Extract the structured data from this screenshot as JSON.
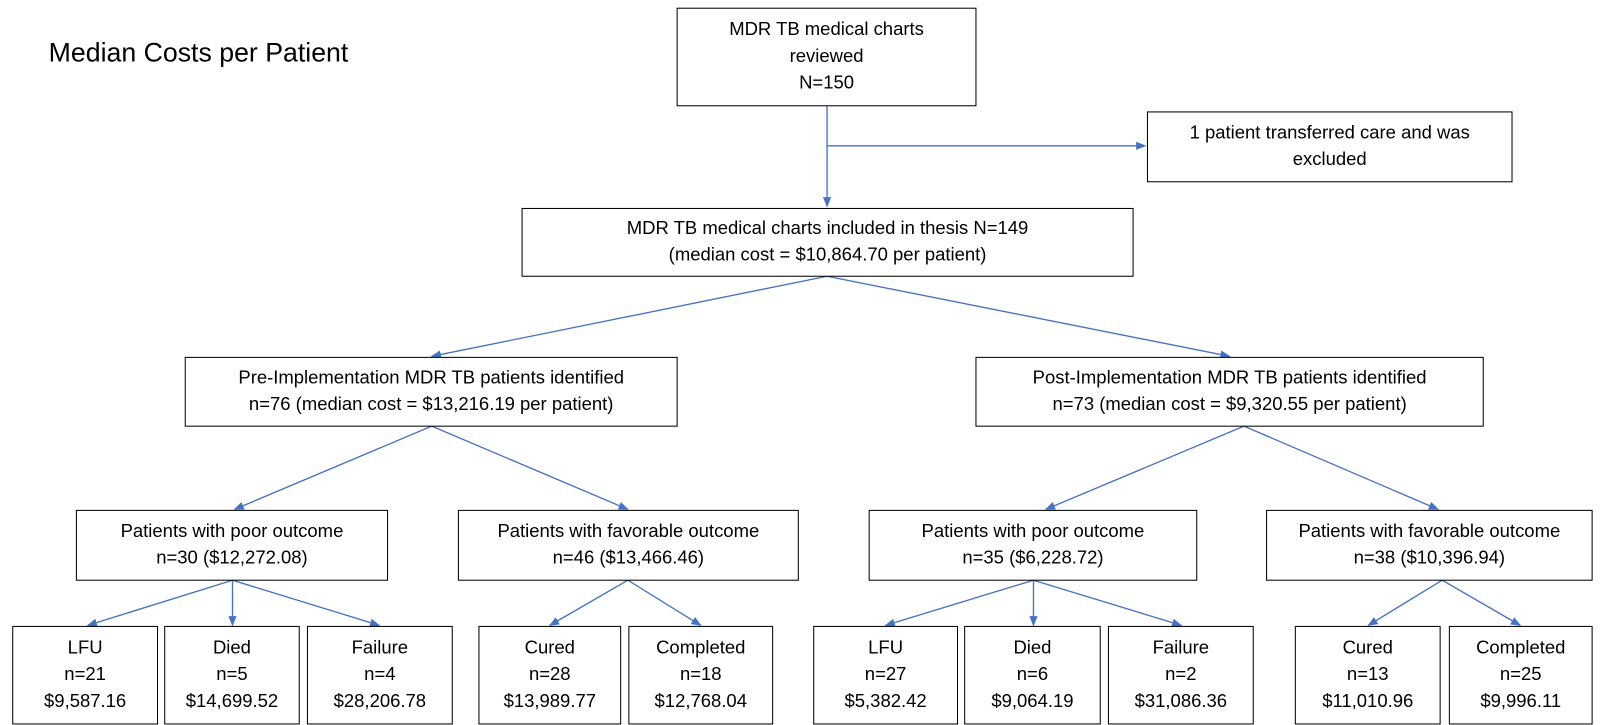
{
  "title": "Median Costs per Patient",
  "nodes": [
    {
      "lines": [
        "MDR TB medical charts",
        "reviewed",
        "N=150"
      ]
    },
    {
      "lines": [
        "1 patient transferred care and was",
        "excluded"
      ]
    },
    {
      "lines": [
        "MDR TB medical charts included in thesis N=149",
        "(median cost = $10,864.70 per patient)"
      ]
    },
    {
      "lines": [
        "Pre-Implementation MDR TB patients identified",
        "n=76 (median cost = $13,216.19 per patient)"
      ]
    },
    {
      "lines": [
        "Post-Implementation MDR TB patients identified",
        "n=73 (median cost = $9,320.55 per patient)"
      ]
    },
    {
      "lines": [
        "Patients with poor outcome",
        "n=30 ($12,272.08)"
      ]
    },
    {
      "lines": [
        "Patients with favorable outcome",
        "n=46 ($13,466.46)"
      ]
    },
    {
      "lines": [
        "Patients with poor outcome",
        "n=35 ($6,228.72)"
      ]
    },
    {
      "lines": [
        "Patients with favorable outcome",
        "n=38 ($10,396.94)"
      ]
    },
    {
      "lines": [
        "LFU",
        "n=21",
        "$9,587.16"
      ]
    },
    {
      "lines": [
        "Died",
        "n=5",
        "$14,699.52"
      ]
    },
    {
      "lines": [
        "Failure",
        "n=4",
        "$28,206.78"
      ]
    },
    {
      "lines": [
        "Cured",
        "n=28",
        "$13,989.77"
      ]
    },
    {
      "lines": [
        "Completed",
        "n=18",
        "$12,768.04"
      ]
    },
    {
      "lines": [
        "LFU",
        "n=27",
        "$5,382.42"
      ]
    },
    {
      "lines": [
        "Died",
        "n=6",
        "$9,064.19"
      ]
    },
    {
      "lines": [
        "Failure",
        "n=2",
        "$31,086.36"
      ]
    },
    {
      "lines": [
        "Cured",
        "n=13",
        "$11,010.96"
      ]
    },
    {
      "lines": [
        "Completed",
        "n=25",
        "$9,996.11"
      ]
    }
  ]
}
